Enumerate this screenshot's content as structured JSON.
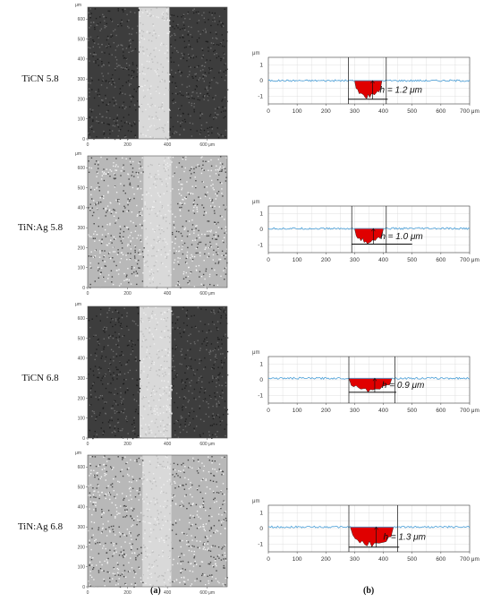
{
  "panels": [
    {
      "label": "TiCN 5.8",
      "micrograph": {
        "track_from": 255,
        "track_to": 410,
        "background": "dark"
      },
      "profile": {
        "h_label": "h = 1.2 μm",
        "window": [
          278,
          410
        ],
        "depth_from": 300,
        "depth_to": 395,
        "depth": 1.2,
        "baseline": 0.0
      }
    },
    {
      "label": "TiN:Ag 5.8",
      "micrograph": {
        "track_from": 280,
        "track_to": 420,
        "background": "light"
      },
      "profile": {
        "h_label": "h = 1.0 μm",
        "window": [
          290,
          410
        ],
        "depth_from": 300,
        "depth_to": 400,
        "depth": 1.0,
        "baseline": 0.05
      }
    },
    {
      "label": "TiCN 6.8",
      "micrograph": {
        "track_from": 260,
        "track_to": 420,
        "background": "dark"
      },
      "profile": {
        "h_label": "h = 0.9 μm",
        "window": [
          280,
          440
        ],
        "depth_from": 280,
        "depth_to": 430,
        "depth": 0.9,
        "baseline": 0.1
      }
    },
    {
      "label": "TiN:Ag 6.8",
      "micrograph": {
        "track_from": 275,
        "track_to": 420,
        "background": "light"
      },
      "profile": {
        "h_label": "h = 1.3 μm",
        "window": [
          280,
          450
        ],
        "depth_from": 285,
        "depth_to": 435,
        "depth": 1.3,
        "baseline": 0.1
      }
    }
  ],
  "micrograph_axes": {
    "unit": "μm",
    "y_ticks": [
      "0",
      "100",
      "200",
      "300",
      "400",
      "500",
      "600"
    ],
    "x_ticks": [
      "0",
      "200",
      "400",
      "600 μm"
    ]
  },
  "profile_axes": {
    "unit": "μm",
    "y_ticks": [
      "1",
      "0",
      "-1"
    ],
    "x_ticks": [
      "0",
      "100",
      "200",
      "300",
      "400",
      "500",
      "600",
      "700 μm"
    ],
    "xlim": [
      0,
      700
    ],
    "ylim": [
      -1.5,
      1.5
    ]
  },
  "captions": {
    "a": "(a)",
    "b": "(b)"
  },
  "colors": {
    "profile_line": "#4a9fd8",
    "wear_fill": "#e00000",
    "dark_bg": "#3d3d3d",
    "light_bg": "#b8b8b8",
    "track": "#d9d9d9"
  }
}
